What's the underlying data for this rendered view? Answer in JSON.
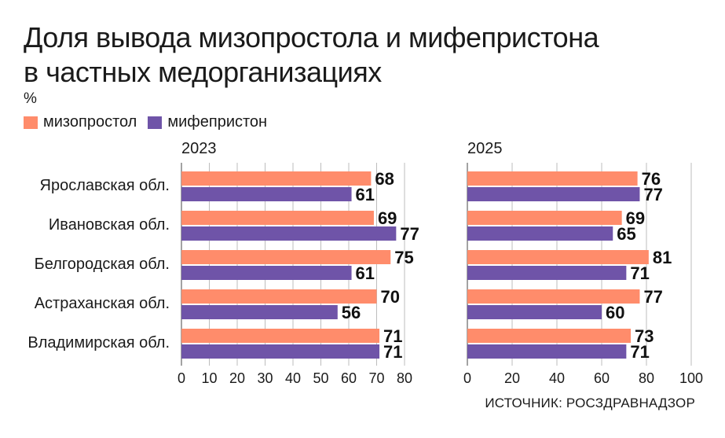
{
  "title": {
    "line1": "Доля вывода мизопростола и мифепристона",
    "line2": "в частных медорганизациях"
  },
  "unit": "%",
  "legend": [
    {
      "label": "мизопростол",
      "color": "#FF8C6B"
    },
    {
      "label": "мифепристон",
      "color": "#6F54A8"
    }
  ],
  "source": "ИСТОЧНИК: РОСЗДРАВНАДЗОР",
  "chart_data": {
    "type": "bar",
    "orientation": "horizontal",
    "categories": [
      "Ярославская обл.",
      "Ивановская обл.",
      "Белгородская обл.",
      "Астраханская обл.",
      "Владимирская обл."
    ],
    "panels": [
      {
        "title": "2023",
        "xlim": [
          0,
          80
        ],
        "ticks": [
          0,
          10,
          20,
          30,
          40,
          50,
          60,
          70,
          80
        ],
        "series": [
          {
            "name": "мизопростол",
            "color": "#FF8C6B",
            "values": [
              68,
              69,
              75,
              70,
              71
            ]
          },
          {
            "name": "мифепристон",
            "color": "#6F54A8",
            "values": [
              61,
              77,
              61,
              56,
              71
            ]
          }
        ]
      },
      {
        "title": "2025",
        "xlim": [
          0,
          100
        ],
        "ticks": [
          0,
          20,
          40,
          60,
          80,
          100
        ],
        "series": [
          {
            "name": "мизопростол",
            "color": "#FF8C6B",
            "values": [
              76,
              69,
              81,
              77,
              73
            ]
          },
          {
            "name": "мифепристон",
            "color": "#6F54A8",
            "values": [
              77,
              65,
              71,
              60,
              71
            ]
          }
        ]
      }
    ],
    "grid": true,
    "legend_position": "top-left"
  }
}
